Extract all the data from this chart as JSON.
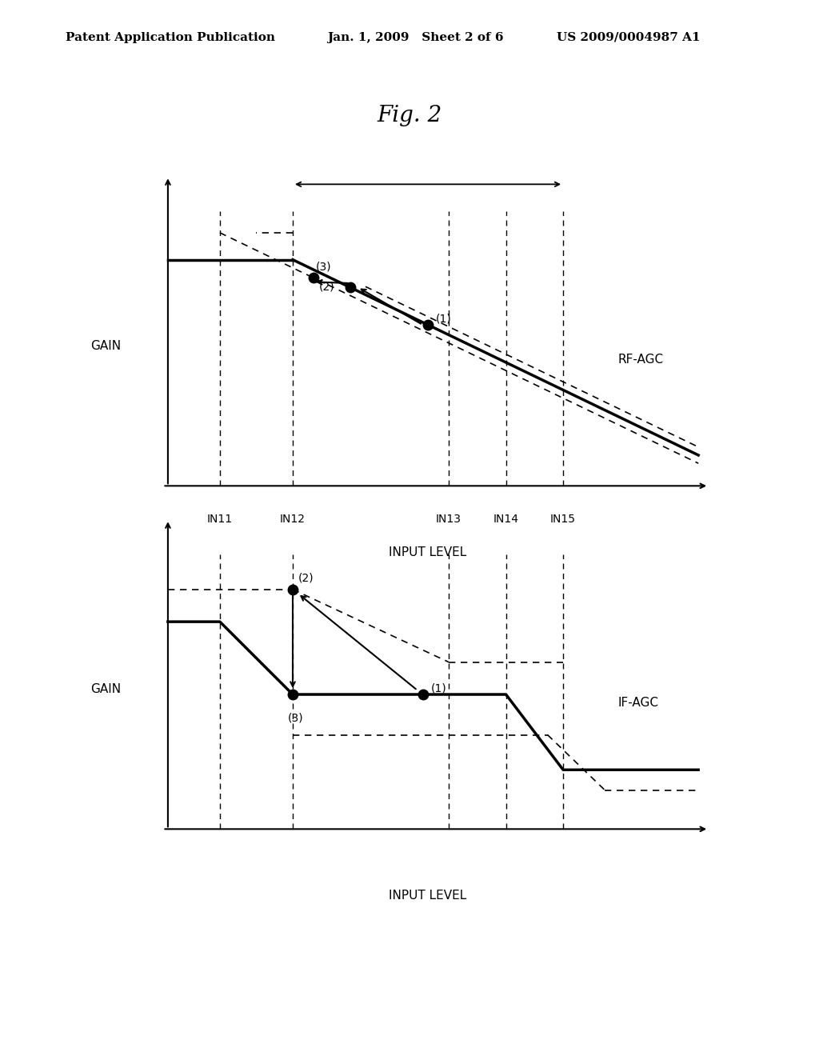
{
  "title": "Fig. 2",
  "header_left": "Patent Application Publication",
  "header_mid": "Jan. 1, 2009   Sheet 2 of 6",
  "header_right": "US 2009/0004987 A1",
  "fig_title_fontsize": 20,
  "header_fontsize": 11,
  "background_color": "#ffffff",
  "x_labels": [
    "IN11",
    "IN12",
    "IN13",
    "IN14",
    "IN15"
  ],
  "rf_agc_label": "RF-AGC",
  "if_agc_label": "IF-AGC",
  "gain_label": "GAIN",
  "input_level_label": "INPUT LEVEL",
  "xIN": [
    0.1,
    0.24,
    0.54,
    0.65,
    0.76
  ]
}
